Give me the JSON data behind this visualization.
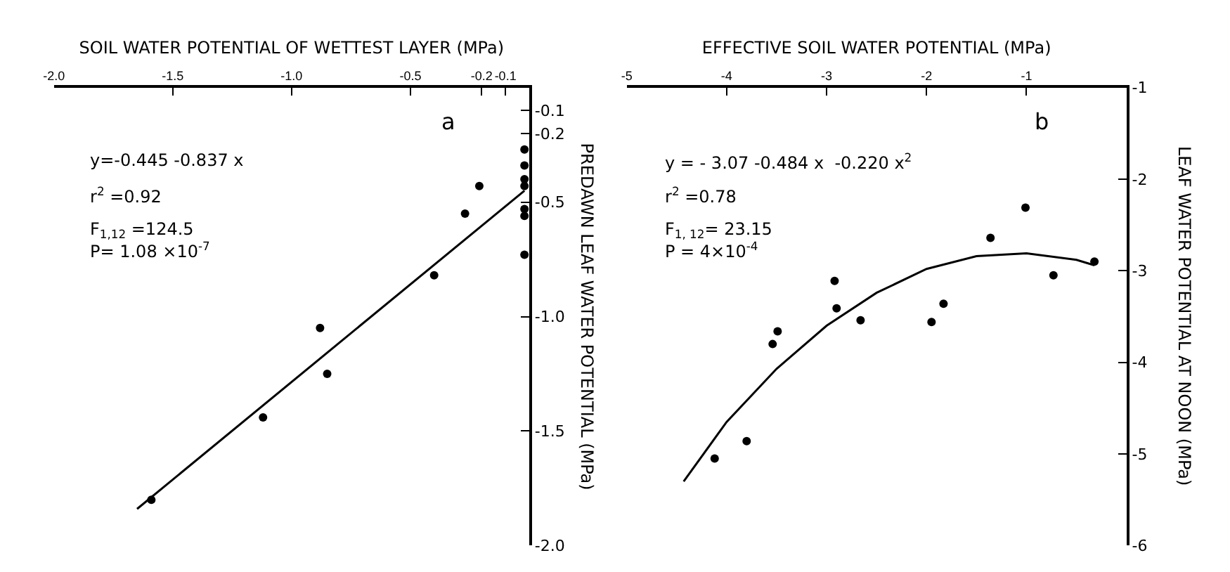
{
  "chart_data": [
    {
      "type": "scatter",
      "xlabel": "SOIL WATER POTENTIAL OF WETTEST LAYER (MPa)",
      "ylabel": "PREDAWN LEAF WATER POTENTIAL (MPa)",
      "xlim": [
        -2.0,
        0.0
      ],
      "ylim": [
        -2.0,
        0.0
      ],
      "xticks": [
        {
          "value": -2.0,
          "label": "-2.0"
        },
        {
          "value": -1.5,
          "label": "-1.5"
        },
        {
          "value": -1.0,
          "label": "-1.0"
        },
        {
          "value": -0.5,
          "label": "-0.5"
        },
        {
          "value": -0.2,
          "label": "-0.2"
        },
        {
          "value": -0.1,
          "label": "-0.1"
        }
      ],
      "yticks": [
        {
          "value": -0.1,
          "label": "-0.1"
        },
        {
          "value": -0.2,
          "label": "-0.2"
        },
        {
          "value": -0.5,
          "label": "-0.5"
        },
        {
          "value": -1.0,
          "label": "-1.0"
        },
        {
          "value": -1.5,
          "label": "-1.5"
        },
        {
          "value": -2.0,
          "label": "-2.0"
        }
      ],
      "series": [
        {
          "type": "scatter",
          "color": "#000000",
          "marker": "circle",
          "x": [
            -0.02,
            -0.02,
            -0.02,
            -0.02,
            -0.21,
            -0.27,
            -0.02,
            -0.02,
            -0.02,
            -0.4,
            -0.88,
            -0.85,
            -1.12,
            -1.59
          ],
          "values": [
            -0.27,
            -0.34,
            -0.4,
            -0.43,
            -0.43,
            -0.55,
            -0.53,
            -0.56,
            -0.73,
            -0.82,
            -1.05,
            -1.25,
            -1.44,
            -1.8
          ]
        },
        {
          "type": "line",
          "color": "#000000",
          "line_style": "solid",
          "marker": "none",
          "x": [
            -1.65,
            -0.02
          ],
          "values": [
            -1.84,
            -0.45
          ]
        }
      ],
      "annotations": [
        "a",
        "y=-0.445 -0.837 x",
        "r$^{2}$ =0.92",
        "F$_{1,12}$ =124.5",
        "P= 1.08 ×10$^{-7}$"
      ]
    },
    {
      "type": "scatter",
      "xlabel": "EFFECTIVE SOIL WATER POTENTIAL (MPa)",
      "ylabel": "LEAF WATER POTENTIAL AT NOON (MPa)",
      "xlim": [
        -5,
        0
      ],
      "ylim": [
        -6,
        -1
      ],
      "xticks": [
        -5,
        -4,
        -3,
        -2,
        -1
      ],
      "yticks": [
        -1,
        -2,
        -3,
        -4,
        -5,
        -6
      ],
      "series": [
        {
          "type": "scatter",
          "color": "#000000",
          "marker": "circle",
          "x": [
            -1.01,
            -1.36,
            -0.32,
            -0.73,
            -2.92,
            -2.9,
            -2.66,
            -1.83,
            -1.95,
            -3.49,
            -3.54,
            -3.8,
            -4.12
          ],
          "values": [
            -2.31,
            -2.64,
            -2.9,
            -3.05,
            -3.11,
            -3.41,
            -3.54,
            -3.36,
            -3.56,
            -3.66,
            -3.8,
            -4.86,
            -5.05
          ]
        },
        {
          "type": "line",
          "color": "#000000",
          "line_style": "solid",
          "marker": "none",
          "x": [
            -4.43,
            -4.0,
            -3.5,
            -3.0,
            -2.5,
            -2.0,
            -1.5,
            -1.0,
            -0.5,
            -0.32
          ],
          "values": [
            -5.3,
            -4.65,
            -4.07,
            -3.6,
            -3.24,
            -2.98,
            -2.84,
            -2.81,
            -2.88,
            -2.94
          ]
        }
      ],
      "annotations": [
        "b",
        "y = - 3.07 -0.484 x  -0.220 x$^{2}$",
        "r$^{2}$ =0.78",
        "F$_{1, 12}$= 23.15",
        "P = 4×10$^{-4}$"
      ]
    }
  ]
}
